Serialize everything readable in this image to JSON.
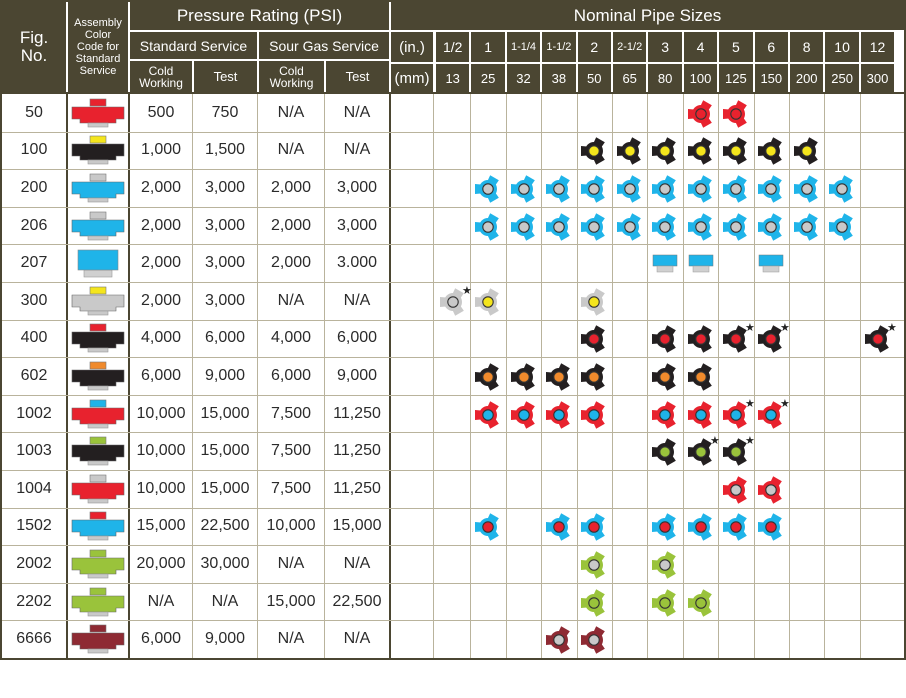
{
  "header": {
    "fig_no": "Fig.\nNo.",
    "assembly": "Assembly\nColor\nCode for\nStandard\nService",
    "pressure_rating": "Pressure Rating (PSI)",
    "standard_service": "Standard Service",
    "sour_gas_service": "Sour Gas Service",
    "cold_working": "Cold\nWorking",
    "test": "Test",
    "nominal_pipe_sizes": "Nominal Pipe Sizes",
    "in_label": "(in.)",
    "mm_label": "(mm)",
    "sizes_in": [
      "1/2",
      "1",
      "1-1/4",
      "1-1/2",
      "2",
      "2-1/2",
      "3",
      "4",
      "5",
      "6",
      "8",
      "10",
      "12"
    ],
    "sizes_mm": [
      "13",
      "25",
      "32",
      "38",
      "50",
      "65",
      "80",
      "100",
      "125",
      "150",
      "200",
      "250",
      "300"
    ]
  },
  "colors": {
    "header_bg": "#4b4632",
    "grid_dark": "#4b4632",
    "grid_light": "#b9b39c",
    "red": "#e8222e",
    "black": "#231f20",
    "yellow": "#f4e51c",
    "blue": "#1fb4e9",
    "gray": "#c9c9c9",
    "orange": "#f08a2c",
    "green": "#9ac33b",
    "maroon": "#8e2a33"
  },
  "rows": [
    {
      "fig": "50",
      "swatch": {
        "top": "red",
        "body": "red"
      },
      "std_cold": "500",
      "std_test": "750",
      "sour_cold": "N/A",
      "sour_test": "N/A",
      "icons": [
        {
          "col": 7,
          "type": "union",
          "ring": "red",
          "center": "red"
        },
        {
          "col": 8,
          "type": "union",
          "ring": "red",
          "center": "red"
        }
      ]
    },
    {
      "fig": "100",
      "swatch": {
        "top": "yellow",
        "body": "black"
      },
      "std_cold": "1,000",
      "std_test": "1,500",
      "sour_cold": "N/A",
      "sour_test": "N/A",
      "icons": [
        {
          "col": 4,
          "type": "union",
          "ring": "black",
          "center": "yellow"
        },
        {
          "col": 5,
          "type": "union",
          "ring": "black",
          "center": "yellow"
        },
        {
          "col": 6,
          "type": "union",
          "ring": "black",
          "center": "yellow"
        },
        {
          "col": 7,
          "type": "union",
          "ring": "black",
          "center": "yellow"
        },
        {
          "col": 8,
          "type": "union",
          "ring": "black",
          "center": "yellow"
        },
        {
          "col": 9,
          "type": "union",
          "ring": "black",
          "center": "yellow"
        },
        {
          "col": 10,
          "type": "union",
          "ring": "black",
          "center": "yellow"
        }
      ]
    },
    {
      "fig": "200",
      "swatch": {
        "top": "gray",
        "body": "blue"
      },
      "std_cold": "2,000",
      "std_test": "3,000",
      "sour_cold": "2,000",
      "sour_test": "3,000",
      "icons": [
        {
          "col": 1,
          "type": "union",
          "ring": "blue",
          "center": "gray"
        },
        {
          "col": 2,
          "type": "union",
          "ring": "blue",
          "center": "gray"
        },
        {
          "col": 3,
          "type": "union",
          "ring": "blue",
          "center": "gray"
        },
        {
          "col": 4,
          "type": "union",
          "ring": "blue",
          "center": "gray"
        },
        {
          "col": 5,
          "type": "union",
          "ring": "blue",
          "center": "gray"
        },
        {
          "col": 6,
          "type": "union",
          "ring": "blue",
          "center": "gray"
        },
        {
          "col": 7,
          "type": "union",
          "ring": "blue",
          "center": "gray"
        },
        {
          "col": 8,
          "type": "union",
          "ring": "blue",
          "center": "gray"
        },
        {
          "col": 9,
          "type": "union",
          "ring": "blue",
          "center": "gray"
        },
        {
          "col": 10,
          "type": "union",
          "ring": "blue",
          "center": "gray"
        },
        {
          "col": 11,
          "type": "union",
          "ring": "blue",
          "center": "gray"
        }
      ]
    },
    {
      "fig": "206",
      "swatch": {
        "top": "gray",
        "body": "blue"
      },
      "std_cold": "2,000",
      "std_test": "3,000",
      "sour_cold": "2,000",
      "sour_test": "3,000",
      "icons": [
        {
          "col": 1,
          "type": "union",
          "ring": "blue",
          "center": "gray"
        },
        {
          "col": 2,
          "type": "union",
          "ring": "blue",
          "center": "gray"
        },
        {
          "col": 3,
          "type": "union",
          "ring": "blue",
          "center": "gray"
        },
        {
          "col": 4,
          "type": "union",
          "ring": "blue",
          "center": "gray"
        },
        {
          "col": 5,
          "type": "union",
          "ring": "blue",
          "center": "gray"
        },
        {
          "col": 6,
          "type": "union",
          "ring": "blue",
          "center": "gray"
        },
        {
          "col": 7,
          "type": "union",
          "ring": "blue",
          "center": "gray"
        },
        {
          "col": 8,
          "type": "union",
          "ring": "blue",
          "center": "gray"
        },
        {
          "col": 9,
          "type": "union",
          "ring": "blue",
          "center": "gray"
        },
        {
          "col": 10,
          "type": "union",
          "ring": "blue",
          "center": "gray"
        },
        {
          "col": 11,
          "type": "union",
          "ring": "blue",
          "center": "gray"
        }
      ]
    },
    {
      "fig": "207",
      "swatch": {
        "top": "blue",
        "body": "blue",
        "style": "block"
      },
      "std_cold": "2,000",
      "std_test": "3,000",
      "sour_cold": "2,000",
      "sour_test": "3.000",
      "icons": [
        {
          "col": 6,
          "type": "block"
        },
        {
          "col": 7,
          "type": "block"
        },
        {
          "col": 9,
          "type": "block"
        }
      ]
    },
    {
      "fig": "300",
      "swatch": {
        "top": "yellow",
        "body": "gray"
      },
      "std_cold": "2,000",
      "std_test": "3,000",
      "sour_cold": "N/A",
      "sour_test": "N/A",
      "icons": [
        {
          "col": 0,
          "type": "union",
          "ring": "gray",
          "center": "gray",
          "star": true
        },
        {
          "col": 1,
          "type": "union",
          "ring": "gray",
          "center": "yellow"
        },
        {
          "col": 4,
          "type": "union",
          "ring": "gray",
          "center": "yellow"
        }
      ]
    },
    {
      "fig": "400",
      "swatch": {
        "top": "red",
        "body": "black"
      },
      "std_cold": "4,000",
      "std_test": "6,000",
      "sour_cold": "4,000",
      "sour_test": "6,000",
      "icons": [
        {
          "col": 4,
          "type": "union",
          "ring": "black",
          "center": "red"
        },
        {
          "col": 6,
          "type": "union",
          "ring": "black",
          "center": "red"
        },
        {
          "col": 7,
          "type": "union",
          "ring": "black",
          "center": "red"
        },
        {
          "col": 8,
          "type": "union",
          "ring": "black",
          "center": "red",
          "star": true
        },
        {
          "col": 9,
          "type": "union",
          "ring": "black",
          "center": "red",
          "star": true
        },
        {
          "col": 12,
          "type": "union",
          "ring": "black",
          "center": "red",
          "star": true
        }
      ]
    },
    {
      "fig": "602",
      "swatch": {
        "top": "orange",
        "body": "black"
      },
      "std_cold": "6,000",
      "std_test": "9,000",
      "sour_cold": "6,000",
      "sour_test": "9,000",
      "icons": [
        {
          "col": 1,
          "type": "union",
          "ring": "black",
          "center": "orange"
        },
        {
          "col": 2,
          "type": "union",
          "ring": "black",
          "center": "orange"
        },
        {
          "col": 3,
          "type": "union",
          "ring": "black",
          "center": "orange"
        },
        {
          "col": 4,
          "type": "union",
          "ring": "black",
          "center": "orange"
        },
        {
          "col": 6,
          "type": "union",
          "ring": "black",
          "center": "orange"
        },
        {
          "col": 7,
          "type": "union",
          "ring": "black",
          "center": "orange"
        }
      ]
    },
    {
      "fig": "1002",
      "swatch": {
        "top": "blue",
        "body": "red"
      },
      "std_cold": "10,000",
      "std_test": "15,000",
      "sour_cold": "7,500",
      "sour_test": "11,250",
      "icons": [
        {
          "col": 1,
          "type": "union",
          "ring": "red",
          "center": "blue"
        },
        {
          "col": 2,
          "type": "union",
          "ring": "red",
          "center": "blue"
        },
        {
          "col": 3,
          "type": "union",
          "ring": "red",
          "center": "blue"
        },
        {
          "col": 4,
          "type": "union",
          "ring": "red",
          "center": "blue"
        },
        {
          "col": 6,
          "type": "union",
          "ring": "red",
          "center": "blue"
        },
        {
          "col": 7,
          "type": "union",
          "ring": "red",
          "center": "blue"
        },
        {
          "col": 8,
          "type": "union",
          "ring": "red",
          "center": "blue",
          "star": true
        },
        {
          "col": 9,
          "type": "union",
          "ring": "red",
          "center": "blue",
          "star": true
        }
      ]
    },
    {
      "fig": "1003",
      "swatch": {
        "top": "green",
        "body": "black"
      },
      "std_cold": "10,000",
      "std_test": "15,000",
      "sour_cold": "7,500",
      "sour_test": "11,250",
      "icons": [
        {
          "col": 6,
          "type": "union",
          "ring": "black",
          "center": "green"
        },
        {
          "col": 7,
          "type": "union",
          "ring": "black",
          "center": "green",
          "star": true
        },
        {
          "col": 8,
          "type": "union",
          "ring": "black",
          "center": "green",
          "star": true
        }
      ]
    },
    {
      "fig": "1004",
      "swatch": {
        "top": "gray",
        "body": "red"
      },
      "std_cold": "10,000",
      "std_test": "15,000",
      "sour_cold": "7,500",
      "sour_test": "11,250",
      "icons": [
        {
          "col": 8,
          "type": "union",
          "ring": "red",
          "center": "gray"
        },
        {
          "col": 9,
          "type": "union",
          "ring": "red",
          "center": "gray"
        }
      ]
    },
    {
      "fig": "1502",
      "swatch": {
        "top": "red",
        "body": "blue"
      },
      "std_cold": "15,000",
      "std_test": "22,500",
      "sour_cold": "10,000",
      "sour_test": "15,000",
      "icons": [
        {
          "col": 1,
          "type": "union",
          "ring": "blue",
          "center": "red"
        },
        {
          "col": 3,
          "type": "union",
          "ring": "blue",
          "center": "red"
        },
        {
          "col": 4,
          "type": "union",
          "ring": "blue",
          "center": "red"
        },
        {
          "col": 6,
          "type": "union",
          "ring": "blue",
          "center": "red"
        },
        {
          "col": 7,
          "type": "union",
          "ring": "blue",
          "center": "red"
        },
        {
          "col": 8,
          "type": "union",
          "ring": "blue",
          "center": "red"
        },
        {
          "col": 9,
          "type": "union",
          "ring": "blue",
          "center": "red"
        }
      ]
    },
    {
      "fig": "2002",
      "swatch": {
        "top": "green",
        "body": "green"
      },
      "std_cold": "20,000",
      "std_test": "30,000",
      "sour_cold": "N/A",
      "sour_test": "N/A",
      "icons": [
        {
          "col": 4,
          "type": "union",
          "ring": "green",
          "center": "gray"
        },
        {
          "col": 6,
          "type": "union",
          "ring": "green",
          "center": "gray"
        }
      ]
    },
    {
      "fig": "2202",
      "swatch": {
        "top": "green",
        "body": "green"
      },
      "std_cold": "N/A",
      "std_test": "N/A",
      "sour_cold": "15,000",
      "sour_test": "22,500",
      "icons": [
        {
          "col": 4,
          "type": "union",
          "ring": "green",
          "center": "green"
        },
        {
          "col": 6,
          "type": "union",
          "ring": "green",
          "center": "green"
        },
        {
          "col": 7,
          "type": "union",
          "ring": "green",
          "center": "green"
        }
      ]
    },
    {
      "fig": "6666",
      "swatch": {
        "top": "maroon",
        "body": "maroon"
      },
      "std_cold": "6,000",
      "std_test": "9,000",
      "sour_cold": "N/A",
      "sour_test": "N/A",
      "icons": [
        {
          "col": 3,
          "type": "union",
          "ring": "maroon",
          "center": "gray"
        },
        {
          "col": 4,
          "type": "union",
          "ring": "maroon",
          "center": "gray"
        }
      ]
    }
  ]
}
